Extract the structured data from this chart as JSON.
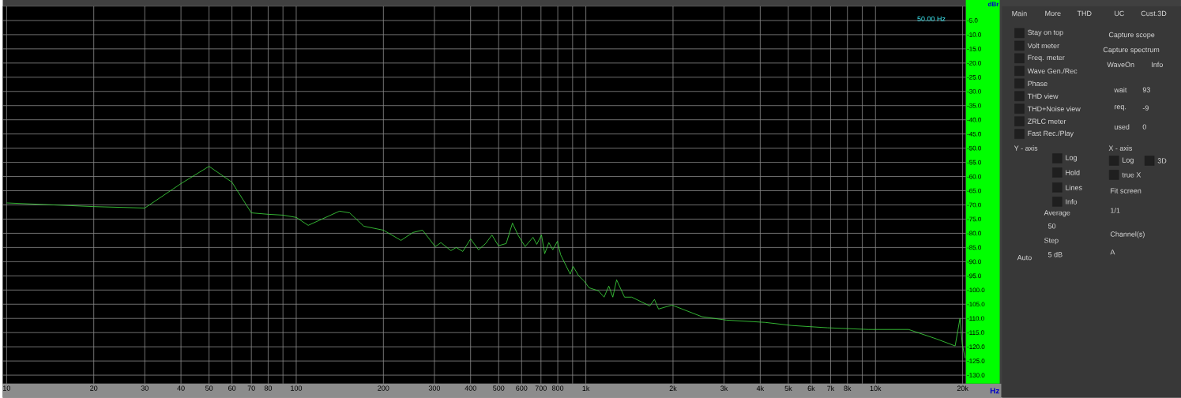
{
  "chart_data": {
    "type": "line",
    "xlabel": "Hz",
    "ylabel": "dBr",
    "log": "x",
    "grid": true,
    "line_style": "solid",
    "xlim": [
      9.7,
      20500
    ],
    "ylim": [
      -133,
      0
    ],
    "xticks": [
      10,
      20,
      30,
      40,
      50,
      60,
      70,
      80,
      {
        "value": 90,
        "label": null
      },
      100,
      200,
      300,
      400,
      500,
      600,
      700,
      800,
      {
        "value": 900,
        "label": null
      },
      {
        "value": 1000,
        "label": "1k"
      },
      {
        "value": 2000,
        "label": "2k"
      },
      {
        "value": 3000,
        "label": "3k"
      },
      {
        "value": 4000,
        "label": "4k"
      },
      {
        "value": 5000,
        "label": "5k"
      },
      {
        "value": 6000,
        "label": "6k"
      },
      {
        "value": 7000,
        "label": "7k"
      },
      {
        "value": 8000,
        "label": "8k"
      },
      {
        "value": 9000,
        "label": null
      },
      {
        "value": 10000,
        "label": "10k"
      },
      {
        "value": 20000,
        "label": "20k"
      }
    ],
    "yticks": [
      {
        "value": -5,
        "label": "-5.0"
      },
      {
        "value": -10,
        "label": "-10.0"
      },
      {
        "value": -15,
        "label": "-15.0"
      },
      {
        "value": -20,
        "label": "-20.0"
      },
      {
        "value": -25,
        "label": "-25.0"
      },
      {
        "value": -30,
        "label": "-30.0"
      },
      {
        "value": -35,
        "label": "-35.0"
      },
      {
        "value": -40,
        "label": "-40.0"
      },
      {
        "value": -45,
        "label": "-45.0"
      },
      {
        "value": -50,
        "label": "-50.0"
      },
      {
        "value": -55,
        "label": "-55.0"
      },
      {
        "value": -60,
        "label": "-60.0"
      },
      {
        "value": -65,
        "label": "-65.0"
      },
      {
        "value": -70,
        "label": "-70.0"
      },
      {
        "value": -75,
        "label": "-75.0"
      },
      {
        "value": -80,
        "label": "-80.0"
      },
      {
        "value": -85,
        "label": "-85.0"
      },
      {
        "value": -90,
        "label": "-90.0"
      },
      {
        "value": -95,
        "label": "-95.0"
      },
      {
        "value": -100,
        "label": "-100.0"
      },
      {
        "value": -105,
        "label": "-105.0"
      },
      {
        "value": -110,
        "label": "-110.0"
      },
      {
        "value": -115,
        "label": "-115.0"
      },
      {
        "value": -120,
        "label": "-120.0"
      },
      {
        "value": -125,
        "label": "-125.0"
      },
      {
        "value": -130,
        "label": "-130.0"
      }
    ],
    "x": [
      10,
      20,
      30,
      40,
      50,
      60,
      70,
      80,
      90,
      100,
      110,
      141,
      153,
      171,
      200,
      230,
      253,
      273,
      302,
      316,
      342,
      357,
      376,
      400,
      426,
      451,
      474,
      499,
      531,
      558,
      583,
      617,
      657,
      677,
      703,
      721,
      745,
      769,
      798,
      818,
      883,
      904,
      945,
      988,
      1026,
      1106,
      1156,
      1200,
      1239,
      1277,
      1360,
      1440,
      1662,
      1725,
      1782,
      1983,
      2516,
      3057,
      4155,
      5141,
      6823,
      9446,
      13010,
      16210,
      18840,
      19580,
      19950,
      20400
    ],
    "series": [
      {
        "color": "#40e040",
        "values": [
          -69.3,
          -70.6,
          -71.1,
          -62.5,
          -56.4,
          -62,
          -72.8,
          -73.3,
          -73.6,
          -74.4,
          -77.2,
          -72.2,
          -72.8,
          -77.5,
          -78.9,
          -82.5,
          -79.7,
          -78.9,
          -84.7,
          -83.3,
          -86.1,
          -85,
          -86.4,
          -82,
          -85.8,
          -83.6,
          -80.6,
          -84.4,
          -83.6,
          -76.4,
          -80.6,
          -84.7,
          -81.4,
          -83.9,
          -80.6,
          -87.2,
          -83.3,
          -85.8,
          -82.8,
          -87.5,
          -94.4,
          -91.7,
          -95,
          -96.9,
          -99.2,
          -100.3,
          -102.5,
          -98.6,
          -102.5,
          -96.4,
          -102.5,
          -102.5,
          -105.6,
          -103.3,
          -106.7,
          -105.3,
          -109.4,
          -110.6,
          -111.4,
          -112.5,
          -113.3,
          -113.9,
          -113.9,
          -117.2,
          -119.7,
          -110,
          -119.2,
          -124
        ]
      }
    ],
    "annotations": [
      "50.00 Hz",
      "Main",
      "More",
      "THD",
      "UC",
      "Cust.3D",
      "Stay on top",
      "Volt meter",
      "Freq. meter",
      "Wave Gen./Rec",
      "Phase",
      "THD view",
      "THD+Noise view",
      "ZRLC meter",
      "Fast Rec./Play",
      "Capture scope",
      "Capture spectrum",
      "WaveOn",
      "Info",
      "wait",
      "93",
      "req.",
      "-9",
      "used",
      "0",
      "Y - axis",
      "Log",
      "Hold",
      "Lines",
      "Info",
      "Average",
      "50",
      "Step",
      "5 dB",
      "Auto",
      "X - axis",
      "Log",
      "3D",
      "true X",
      "Fit screen",
      "1/1",
      "Channel(s)",
      "A"
    ]
  }
}
